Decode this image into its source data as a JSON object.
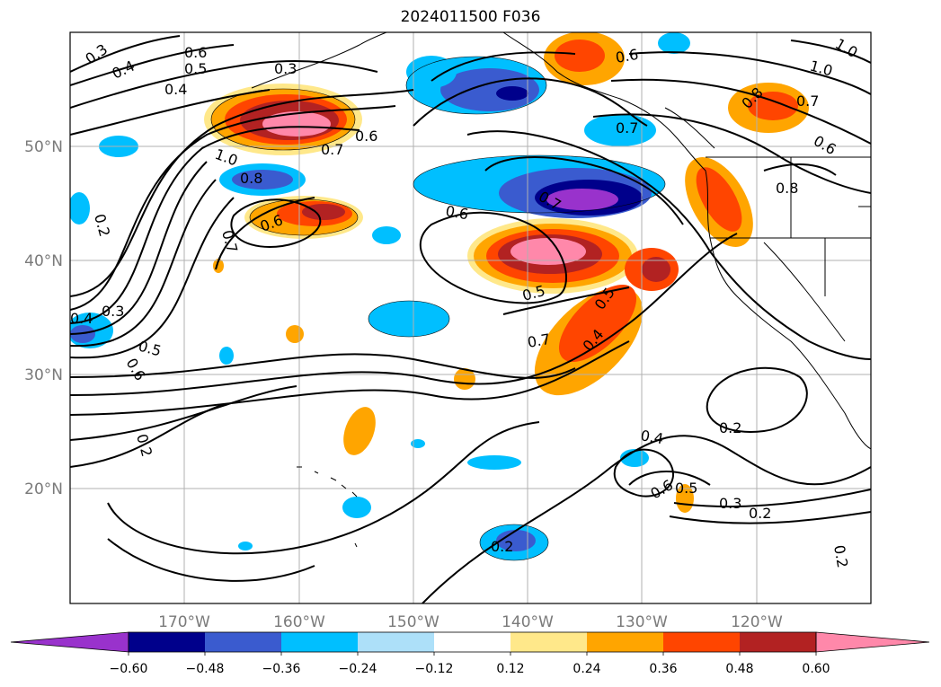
{
  "title": "2024011500 F036",
  "longitude_labels": [
    "170°W",
    "160°W",
    "150°W",
    "140°W",
    "130°W",
    "120°W"
  ],
  "latitude_labels": [
    "50°N",
    "40°N",
    "30°N",
    "20°N"
  ],
  "colorbar": {
    "colors": [
      "#9932CC",
      "#00008B",
      "#3A5BCF",
      "#00BFFF",
      "#ADE0F9",
      "#FFFFFF",
      "#FFE88A",
      "#FFA500",
      "#FF4500",
      "#B22222",
      "#FF88AA"
    ],
    "tick_labels": [
      "−0.60",
      "−0.48",
      "−0.36",
      "−0.24",
      "−0.12",
      "0.12",
      "0.24",
      "0.36",
      "0.48",
      "0.60"
    ]
  },
  "contour_labels": [
    "0.3",
    "0.6",
    "0.5",
    "0.4",
    "0.3",
    "0.4",
    "1.0",
    "0.8",
    "0.6",
    "0.7",
    "0.7",
    "0.2",
    "0.4",
    "0.3",
    "0.5",
    "0.6",
    "0.2",
    "0.6",
    "0.7",
    "0.6",
    "0.5",
    "0.5",
    "0.7",
    "0.4",
    "0.6",
    "0.7",
    "0.7",
    "0.8",
    "0.8",
    "0.6",
    "1.0",
    "1.0",
    "0.4",
    "0.6",
    "0.5",
    "0.3",
    "0.2",
    "0.2",
    "0.2",
    "0.2"
  ]
}
